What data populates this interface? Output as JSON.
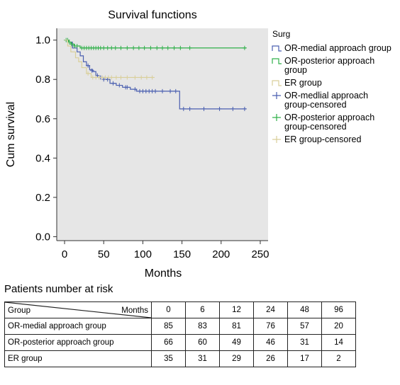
{
  "chart_data": {
    "type": "line",
    "title": "Survival functions",
    "xlabel": "Months",
    "ylabel": "Cum survival",
    "xlim": [
      -10,
      260
    ],
    "ylim": [
      -0.02,
      1.06
    ],
    "x_ticks": [
      "0",
      "50",
      "100",
      "150",
      "200",
      "250"
    ],
    "y_ticks": [
      "0.0",
      "0.2",
      "0.4",
      "0.6",
      "0.8",
      "1.0"
    ],
    "legend_title": "Surg",
    "legend_position": "right",
    "background": "#e6e6e6",
    "legend": [
      {
        "label": "OR-medial approach group",
        "color": "#4a5fb0",
        "marker": "step"
      },
      {
        "label": "OR-posterior approach group",
        "color": "#30b04a",
        "marker": "step"
      },
      {
        "label": "ER group",
        "color": "#d9cf9a",
        "marker": "step"
      },
      {
        "label": "OR-medlial approach group-censored",
        "color": "#4a5fb0",
        "marker": "plus"
      },
      {
        "label": "OR-posterior approach group-censored",
        "color": "#30b04a",
        "marker": "plus"
      },
      {
        "label": "ER group-censored",
        "color": "#d9cf9a",
        "marker": "plus"
      }
    ],
    "series": [
      {
        "name": "OR-medial approach group",
        "color": "#4a5fb0",
        "steps": [
          [
            0,
            1.0
          ],
          [
            5,
            0.99
          ],
          [
            10,
            0.96
          ],
          [
            16,
            0.94
          ],
          [
            20,
            0.92
          ],
          [
            24,
            0.89
          ],
          [
            28,
            0.87
          ],
          [
            32,
            0.85
          ],
          [
            36,
            0.84
          ],
          [
            40,
            0.82
          ],
          [
            44,
            0.81
          ],
          [
            52,
            0.8
          ],
          [
            58,
            0.78
          ],
          [
            66,
            0.77
          ],
          [
            74,
            0.76
          ],
          [
            84,
            0.75
          ],
          [
            92,
            0.74
          ],
          [
            147,
            0.65
          ],
          [
            232,
            0.65
          ]
        ],
        "censored": [
          [
            30,
            0.87
          ],
          [
            35,
            0.845
          ],
          [
            42,
            0.82
          ],
          [
            46,
            0.81
          ],
          [
            48,
            0.81
          ],
          [
            50,
            0.8
          ],
          [
            55,
            0.8
          ],
          [
            62,
            0.78
          ],
          [
            70,
            0.77
          ],
          [
            78,
            0.76
          ],
          [
            80,
            0.76
          ],
          [
            90,
            0.75
          ],
          [
            96,
            0.74
          ],
          [
            100,
            0.74
          ],
          [
            104,
            0.74
          ],
          [
            108,
            0.74
          ],
          [
            112,
            0.74
          ],
          [
            116,
            0.74
          ],
          [
            125,
            0.74
          ],
          [
            135,
            0.74
          ],
          [
            142,
            0.74
          ],
          [
            152,
            0.65
          ],
          [
            160,
            0.65
          ],
          [
            178,
            0.65
          ],
          [
            198,
            0.65
          ],
          [
            215,
            0.65
          ],
          [
            230,
            0.65
          ]
        ]
      },
      {
        "name": "OR-posterior approach group",
        "color": "#30b04a",
        "steps": [
          [
            0,
            1.0
          ],
          [
            5,
            0.99
          ],
          [
            8,
            0.98
          ],
          [
            12,
            0.97
          ],
          [
            20,
            0.96
          ],
          [
            232,
            0.96
          ]
        ],
        "censored": [
          [
            2,
            1.0
          ],
          [
            4,
            1.0
          ],
          [
            6,
            0.99
          ],
          [
            9,
            0.98
          ],
          [
            13,
            0.97
          ],
          [
            16,
            0.97
          ],
          [
            22,
            0.96
          ],
          [
            25,
            0.96
          ],
          [
            28,
            0.96
          ],
          [
            31,
            0.96
          ],
          [
            34,
            0.96
          ],
          [
            37,
            0.96
          ],
          [
            40,
            0.96
          ],
          [
            43,
            0.96
          ],
          [
            46,
            0.96
          ],
          [
            50,
            0.96
          ],
          [
            55,
            0.96
          ],
          [
            60,
            0.96
          ],
          [
            65,
            0.96
          ],
          [
            72,
            0.96
          ],
          [
            80,
            0.96
          ],
          [
            88,
            0.96
          ],
          [
            95,
            0.96
          ],
          [
            102,
            0.96
          ],
          [
            110,
            0.96
          ],
          [
            118,
            0.96
          ],
          [
            125,
            0.96
          ],
          [
            132,
            0.96
          ],
          [
            140,
            0.96
          ],
          [
            148,
            0.96
          ],
          [
            160,
            0.96
          ],
          [
            230,
            0.96
          ]
        ]
      },
      {
        "name": "ER group",
        "color": "#d9cf9a",
        "steps": [
          [
            0,
            1.0
          ],
          [
            4,
            0.97
          ],
          [
            8,
            0.94
          ],
          [
            14,
            0.91
          ],
          [
            18,
            0.89
          ],
          [
            22,
            0.86
          ],
          [
            28,
            0.83
          ],
          [
            34,
            0.81
          ],
          [
            115,
            0.81
          ]
        ],
        "censored": [
          [
            30,
            0.83
          ],
          [
            36,
            0.81
          ],
          [
            40,
            0.81
          ],
          [
            44,
            0.81
          ],
          [
            48,
            0.81
          ],
          [
            52,
            0.81
          ],
          [
            56,
            0.81
          ],
          [
            60,
            0.81
          ],
          [
            66,
            0.81
          ],
          [
            72,
            0.81
          ],
          [
            80,
            0.81
          ],
          [
            90,
            0.81
          ],
          [
            98,
            0.81
          ],
          [
            105,
            0.81
          ],
          [
            112,
            0.81
          ]
        ]
      }
    ]
  },
  "risk_table": {
    "title": "Patients number at risk",
    "header_group": "Group",
    "header_months": "Months",
    "months": [
      "0",
      "6",
      "12",
      "24",
      "48",
      "96"
    ],
    "rows": [
      {
        "group": "OR-medial approach group",
        "values": [
          "85",
          "83",
          "81",
          "76",
          "57",
          "20"
        ]
      },
      {
        "group": "OR-posterior approach group",
        "values": [
          "66",
          "60",
          "49",
          "46",
          "31",
          "14"
        ]
      },
      {
        "group": "ER group",
        "values": [
          "35",
          "31",
          "29",
          "26",
          "17",
          "2"
        ]
      }
    ]
  }
}
